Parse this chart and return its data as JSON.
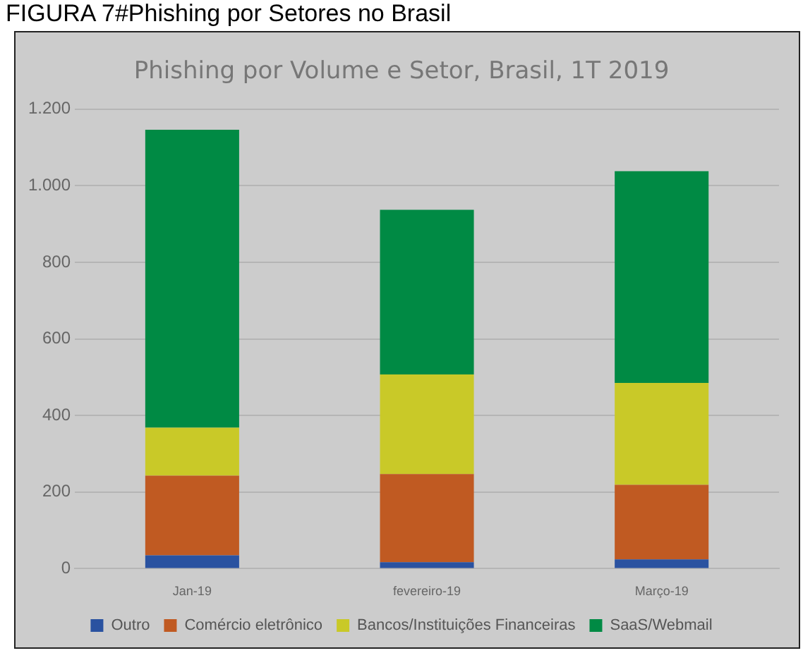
{
  "chart_data": {
    "type": "bar",
    "title": "Phishing por Volume e Setor, Brasil, 1T 2019",
    "annotations": [
      "FIGURA 7#Phishing por Setores no Brasil"
    ],
    "categories": [
      "Jan-19",
      "fevereiro-19",
      "Março-19"
    ],
    "stacked": true,
    "series": [
      {
        "name": "Outro",
        "color": "#2a52a0",
        "values": [
          35,
          17,
          24
        ]
      },
      {
        "name": "Comércio eletrônico",
        "color": "#c05a22",
        "values": [
          208,
          230,
          195
        ]
      },
      {
        "name": "Bancos/Instituições Financeiras",
        "color": "#c9c928",
        "values": [
          125,
          260,
          266
        ]
      },
      {
        "name": "SaaS/Webmail",
        "color": "#008a44",
        "values": [
          778,
          430,
          553
        ]
      }
    ],
    "ylim": [
      0,
      1200
    ],
    "yticks": [
      0,
      200,
      400,
      600,
      800,
      {
        "value": 1000,
        "label": "1.000"
      },
      {
        "value": 1200,
        "label": "1.200"
      }
    ],
    "grid": "y",
    "legend": "bottom"
  }
}
